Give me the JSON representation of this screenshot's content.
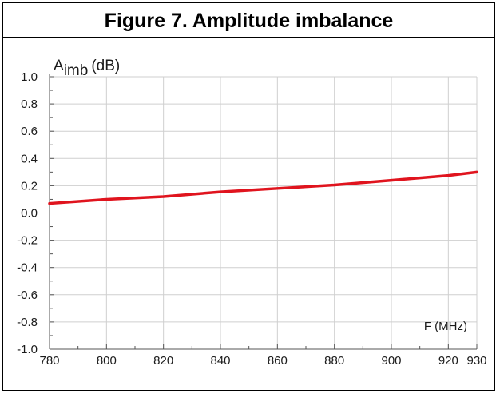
{
  "figure": {
    "title": "Figure 7. Amplitude imbalance"
  },
  "colors": {
    "series": "#e0141e",
    "grid": "#cfcfcf",
    "axis": "#555555",
    "text": "#1a1a1a"
  },
  "chart_data": {
    "type": "line",
    "title": "Figure 7. Amplitude imbalance",
    "ylabel_main": "A",
    "ylabel_sub": "imb",
    "ylabel_unit": "(dB)",
    "xlabel": "F (MHz)",
    "xlim": [
      780,
      930
    ],
    "ylim": [
      -1.0,
      1.0
    ],
    "grid": true,
    "x_ticks": [
      780,
      800,
      820,
      840,
      860,
      880,
      900,
      920,
      930
    ],
    "x_tick_labels": [
      "780",
      "800",
      "820",
      "840",
      "860",
      "880",
      "900",
      "920",
      "930"
    ],
    "y_ticks": [
      1.0,
      0.8,
      0.6,
      0.4,
      0.2,
      0.0,
      -0.2,
      -0.4,
      -0.6,
      -0.8,
      -1.0
    ],
    "y_tick_labels": [
      "1.0",
      "0.8",
      "0.6",
      "0.4",
      "0.2",
      "0.0",
      "-0.2",
      "-0.4",
      "-0.6",
      "-0.8",
      "-1.0"
    ],
    "series": [
      {
        "x": [
          780,
          800,
          820,
          840,
          860,
          880,
          900,
          920,
          930
        ],
        "y": [
          0.07,
          0.1,
          0.12,
          0.155,
          0.18,
          0.205,
          0.24,
          0.275,
          0.3
        ]
      }
    ]
  }
}
